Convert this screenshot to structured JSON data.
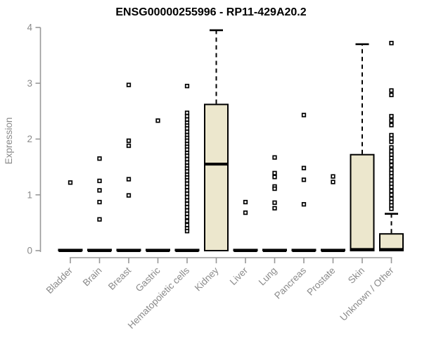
{
  "chart_data": {
    "type": "boxplot",
    "title": "ENSG00000255996 - RP11-429A20.2",
    "ylabel": "Expression",
    "xlabel": "",
    "ylim": [
      0,
      4
    ],
    "yticks": [
      0,
      1,
      2,
      3,
      4
    ],
    "grid": false,
    "legend": "none",
    "colors": {
      "box_fill": "#ECE7CD",
      "box_stroke": "#000000",
      "axis": "#989898",
      "tick_label": "#8a8a8a",
      "title": "#000000",
      "background": "#ffffff"
    },
    "categories": [
      "Bladder",
      "Brain",
      "Breast",
      "Gastric",
      "Hematopoietic cells",
      "Kidney",
      "Liver",
      "Lung",
      "Pancreas",
      "Prostate",
      "Skin",
      "Unknown / Other"
    ],
    "series": [
      {
        "category": "Bladder",
        "q1": 0,
        "median": 0,
        "q3": 0.02,
        "whisker_low": 0,
        "whisker_high": 0.02,
        "outliers": [
          1.22
        ]
      },
      {
        "category": "Brain",
        "q1": 0,
        "median": 0,
        "q3": 0.02,
        "whisker_low": 0,
        "whisker_high": 0.02,
        "outliers": [
          1.65,
          1.25,
          1.08,
          0.87,
          0.56
        ]
      },
      {
        "category": "Breast",
        "q1": 0,
        "median": 0,
        "q3": 0.02,
        "whisker_low": 0,
        "whisker_high": 0.02,
        "outliers": [
          2.97,
          1.97,
          1.88,
          1.28,
          0.99
        ]
      },
      {
        "category": "Gastric",
        "q1": 0,
        "median": 0,
        "q3": 0.02,
        "whisker_low": 0,
        "whisker_high": 0.02,
        "outliers": [
          2.33
        ]
      },
      {
        "category": "Hematopoietic cells",
        "q1": 0,
        "median": 0,
        "q3": 0.02,
        "whisker_low": 0,
        "whisker_high": 0.02,
        "outliers": [
          2.95,
          2.47,
          2.41,
          2.35,
          2.29,
          2.24,
          2.19,
          2.13,
          2.07,
          2.02,
          1.97,
          1.91,
          1.86,
          1.81,
          1.75,
          1.7,
          1.64,
          1.58,
          1.52,
          1.47,
          1.42,
          1.36,
          1.31,
          1.26,
          1.2,
          1.14,
          1.08,
          1.02,
          0.96,
          0.9,
          0.84,
          0.78,
          0.72,
          0.66,
          0.6,
          0.53,
          0.46,
          0.4,
          0.35
        ]
      },
      {
        "category": "Kidney",
        "q1": 0,
        "median": 1.55,
        "q3": 2.62,
        "whisker_low": 0,
        "whisker_high": 3.95,
        "outliers": []
      },
      {
        "category": "Liver",
        "q1": 0,
        "median": 0,
        "q3": 0.02,
        "whisker_low": 0,
        "whisker_high": 0.02,
        "outliers": [
          0.87,
          0.68
        ]
      },
      {
        "category": "Lung",
        "q1": 0,
        "median": 0,
        "q3": 0.02,
        "whisker_low": 0,
        "whisker_high": 0.02,
        "outliers": [
          1.67,
          1.39,
          1.32,
          1.15,
          1.11,
          0.86,
          0.76
        ]
      },
      {
        "category": "Pancreas",
        "q1": 0,
        "median": 0,
        "q3": 0.02,
        "whisker_low": 0,
        "whisker_high": 0.02,
        "outliers": [
          2.43,
          1.48,
          1.27,
          0.83
        ]
      },
      {
        "category": "Prostate",
        "q1": 0,
        "median": 0,
        "q3": 0.02,
        "whisker_low": 0,
        "whisker_high": 0.02,
        "outliers": [
          1.33,
          1.23
        ]
      },
      {
        "category": "Skin",
        "q1": 0,
        "median": 0.02,
        "q3": 1.72,
        "whisker_low": 0,
        "whisker_high": 3.7,
        "outliers": []
      },
      {
        "category": "Unknown / Other",
        "q1": 0,
        "median": 0.02,
        "q3": 0.3,
        "whisker_low": 0,
        "whisker_high": 0.66,
        "outliers": [
          3.72,
          2.87,
          2.79,
          2.41,
          2.33,
          2.25,
          2.07,
          2.01,
          1.95,
          1.85,
          1.78,
          1.72,
          1.66,
          1.6,
          1.53,
          1.45,
          1.39,
          1.33,
          1.26,
          1.2,
          1.14,
          1.07,
          1.0,
          0.93,
          0.87,
          0.81,
          0.75
        ]
      }
    ]
  }
}
